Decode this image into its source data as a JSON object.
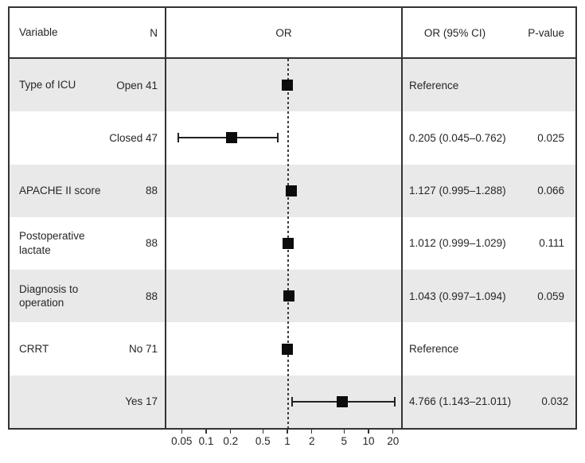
{
  "colors": {
    "row_shade": "#e9e9e9",
    "border": "#333333",
    "text": "#262626",
    "marker": "#0c0c0c",
    "background": "#ffffff"
  },
  "header": {
    "variable": "Variable",
    "n": "N",
    "or": "OR",
    "or_ci": "OR (95% CI)",
    "p_value": "P-value"
  },
  "rows": [
    {
      "variable": "Type of ICU",
      "n": "Open 41",
      "or": 1.0,
      "ci": null,
      "or_ci": "Reference",
      "p": "",
      "shaded": true
    },
    {
      "variable": "",
      "n": "Closed 47",
      "or": 0.205,
      "ci": [
        0.045,
        0.762
      ],
      "or_ci": "0.205 (0.045–0.762)",
      "p": "0.025",
      "shaded": false
    },
    {
      "variable": "APACHE II score",
      "n": "88",
      "or": 1.127,
      "ci": [
        0.995,
        1.288
      ],
      "or_ci": "1.127 (0.995–1.288)",
      "p": "0.066",
      "shaded": true
    },
    {
      "variable": "Postoperative\nlactate",
      "n": "88",
      "or": 1.012,
      "ci": [
        0.999,
        1.029
      ],
      "or_ci": "1.012 (0.999–1.029)",
      "p": "0.111",
      "shaded": false
    },
    {
      "variable": "Diagnosis to\noperation",
      "n": "88",
      "or": 1.043,
      "ci": [
        0.997,
        1.094
      ],
      "or_ci": "1.043 (0.997–1.094)",
      "p": "0.059",
      "shaded": true
    },
    {
      "variable": "CRRT",
      "n": "No 71",
      "or": 1.0,
      "ci": null,
      "or_ci": "Reference",
      "p": "",
      "shaded": false
    },
    {
      "variable": "",
      "n": "Yes 17",
      "or": 4.766,
      "ci": [
        1.143,
        21.011
      ],
      "or_ci": "4.766 (1.143–21.011)",
      "p": "0.032",
      "shaded": true
    }
  ],
  "axis": {
    "scale": "log",
    "ticks": [
      0.05,
      0.1,
      0.2,
      0.5,
      1,
      2,
      5,
      10,
      20
    ],
    "tick_labels": [
      "0.05",
      "0.1",
      "0.2",
      "0.5",
      "1",
      "2",
      "5",
      "10",
      "20"
    ],
    "reference_line_x": 1
  },
  "chart_data": {
    "type": "scatter",
    "subtype": "forest-plot",
    "title": "",
    "xlabel": "OR",
    "ylabel": "",
    "x_scale": "log",
    "xlim": [
      0.04,
      25
    ],
    "x_ticks": [
      0.05,
      0.1,
      0.2,
      0.5,
      1,
      2,
      5,
      10,
      20
    ],
    "reference_line_x": 1,
    "grid": false,
    "legend": false,
    "points": [
      {
        "variable": "Type of ICU",
        "group": "Open",
        "n": 41,
        "or": 1.0,
        "ci_low": null,
        "ci_high": null,
        "or_ci_text": "Reference",
        "p_value": null
      },
      {
        "variable": "Type of ICU",
        "group": "Closed",
        "n": 47,
        "or": 0.205,
        "ci_low": 0.045,
        "ci_high": 0.762,
        "or_ci_text": "0.205 (0.045–0.762)",
        "p_value": 0.025
      },
      {
        "variable": "APACHE II score",
        "group": null,
        "n": 88,
        "or": 1.127,
        "ci_low": 0.995,
        "ci_high": 1.288,
        "or_ci_text": "1.127 (0.995–1.288)",
        "p_value": 0.066
      },
      {
        "variable": "Postoperative lactate",
        "group": null,
        "n": 88,
        "or": 1.012,
        "ci_low": 0.999,
        "ci_high": 1.029,
        "or_ci_text": "1.012 (0.999–1.029)",
        "p_value": 0.111
      },
      {
        "variable": "Diagnosis to operation",
        "group": null,
        "n": 88,
        "or": 1.043,
        "ci_low": 0.997,
        "ci_high": 1.094,
        "or_ci_text": "1.043 (0.997–1.094)",
        "p_value": 0.059
      },
      {
        "variable": "CRRT",
        "group": "No",
        "n": 71,
        "or": 1.0,
        "ci_low": null,
        "ci_high": null,
        "or_ci_text": "Reference",
        "p_value": null
      },
      {
        "variable": "CRRT",
        "group": "Yes",
        "n": 17,
        "or": 4.766,
        "ci_low": 1.143,
        "ci_high": 21.011,
        "or_ci_text": "4.766 (1.143–21.011)",
        "p_value": 0.032
      }
    ]
  }
}
